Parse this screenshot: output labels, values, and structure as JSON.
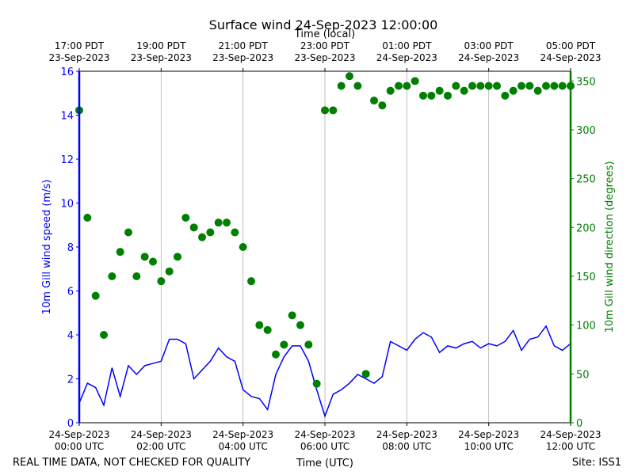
{
  "chart_data": {
    "type": "line",
    "title": "Surface wind 24-Sep-2023 12:00:00",
    "x2label": "Time (local)",
    "xlabel": "Time (UTC)",
    "ylabel": "10m Gill wind speed (m/s)",
    "y2label": "10m Gill wind direction (degrees)",
    "footer_left": "REAL TIME DATA, NOT CHECKED FOR QUALITY",
    "footer_right": "Site: ISS1",
    "grid": true,
    "xlim": [
      0,
      12
    ],
    "xticks": [
      {
        "value": 0,
        "label": "24-Sep-2023\n00:00 UTC"
      },
      {
        "value": 2,
        "label": "24-Sep-2023\n02:00 UTC"
      },
      {
        "value": 4,
        "label": "24-Sep-2023\n04:00 UTC"
      },
      {
        "value": 6,
        "label": "24-Sep-2023\n06:00 UTC"
      },
      {
        "value": 8,
        "label": "24-Sep-2023\n08:00 UTC"
      },
      {
        "value": 10,
        "label": "24-Sep-2023\n10:00 UTC"
      },
      {
        "value": 12,
        "label": "24-Sep-2023\n12:00 UTC"
      }
    ],
    "x2ticks": [
      {
        "value": 0,
        "label": "17:00 PDT\n23-Sep-2023"
      },
      {
        "value": 2,
        "label": "19:00 PDT\n23-Sep-2023"
      },
      {
        "value": 4,
        "label": "21:00 PDT\n23-Sep-2023"
      },
      {
        "value": 6,
        "label": "23:00 PDT\n23-Sep-2023"
      },
      {
        "value": 8,
        "label": "01:00 PDT\n24-Sep-2023"
      },
      {
        "value": 10,
        "label": "03:00 PDT\n24-Sep-2023"
      },
      {
        "value": 12,
        "label": "05:00 PDT\n24-Sep-2023"
      }
    ],
    "ylim": [
      0,
      16
    ],
    "yticks": [
      0,
      2,
      4,
      6,
      8,
      10,
      12,
      14,
      16
    ],
    "y2lim": [
      0,
      360
    ],
    "y2ticks": [
      0,
      50,
      100,
      150,
      200,
      250,
      300,
      350
    ],
    "x": [
      0,
      0.2,
      0.4,
      0.6,
      0.8,
      1,
      1.2,
      1.4,
      1.6,
      1.8,
      2,
      2.2,
      2.4,
      2.6,
      2.8,
      3,
      3.2,
      3.4,
      3.6,
      3.8,
      4,
      4.2,
      4.4,
      4.6,
      4.8,
      5,
      5.2,
      5.4,
      5.6,
      5.8,
      6,
      6.2,
      6.4,
      6.6,
      6.8,
      7,
      7.2,
      7.4,
      7.6,
      7.8,
      8,
      8.2,
      8.4,
      8.6,
      8.8,
      9,
      9.2,
      9.4,
      9.6,
      9.8,
      10,
      10.2,
      10.4,
      10.6,
      10.8,
      11,
      11.2,
      11.4,
      11.6,
      11.8,
      12
    ],
    "series": [
      {
        "type": "line",
        "color": "#0000ff",
        "values": [
          0.9,
          1.8,
          1.6,
          0.8,
          2.5,
          1.2,
          2.6,
          2.2,
          2.6,
          2.7,
          2.8,
          3.8,
          3.8,
          3.6,
          2.0,
          2.4,
          2.8,
          3.4,
          3.0,
          2.8,
          1.5,
          1.2,
          1.1,
          0.6,
          2.2,
          3.0,
          3.5,
          3.5,
          2.8,
          1.5,
          0.3,
          1.3,
          1.5,
          1.8,
          2.2,
          2.0,
          1.8,
          2.1,
          3.7,
          3.5,
          3.3,
          3.8,
          4.1,
          3.9,
          3.2,
          3.5,
          3.4,
          3.6,
          3.7,
          3.4,
          3.6,
          3.5,
          3.7,
          4.2,
          3.3,
          3.8,
          3.9,
          4.4,
          3.5,
          3.3,
          3.6
        ]
      },
      {
        "type": "scatter",
        "axis": "y2",
        "color": "#008000",
        "values": [
          320,
          210,
          130,
          90,
          150,
          175,
          195,
          150,
          170,
          165,
          145,
          155,
          170,
          210,
          200,
          190,
          195,
          205,
          205,
          195,
          180,
          145,
          100,
          95,
          70,
          80,
          110,
          100,
          80,
          40,
          320,
          320,
          345,
          355,
          345,
          50,
          330,
          325,
          340,
          345,
          345,
          350,
          335,
          335,
          340,
          335,
          345,
          340,
          345,
          345,
          345,
          345,
          335,
          340,
          345,
          345,
          340,
          345,
          345,
          345,
          345
        ]
      }
    ]
  }
}
